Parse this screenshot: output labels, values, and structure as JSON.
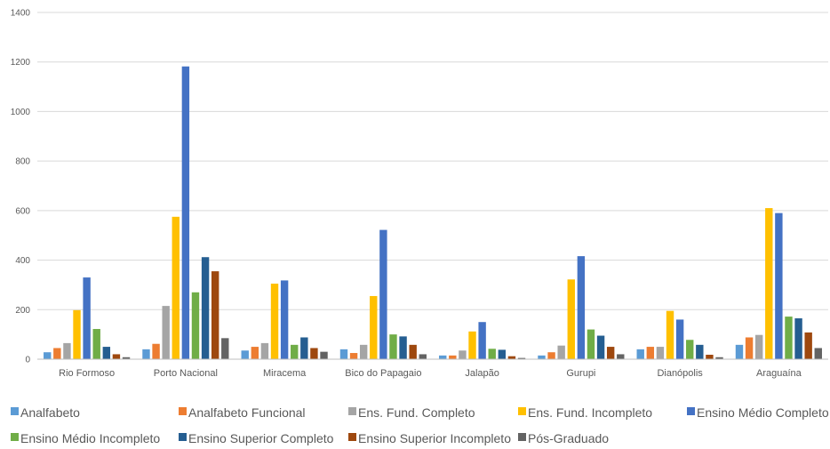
{
  "chart_data": {
    "type": "bar",
    "title": "",
    "xlabel": "",
    "ylabel": "",
    "ylim": [
      0,
      1400
    ],
    "yticks": [
      0,
      200,
      400,
      600,
      800,
      1000,
      1200,
      1400
    ],
    "grid": true,
    "legend_position": "bottom",
    "categories": [
      "Rio Formoso",
      "Porto Nacional",
      "Miracema",
      "Bico do Papagaio",
      "Jalapão",
      "Gurupi",
      "Dianópolis",
      "Araguaína"
    ],
    "series": [
      {
        "name": "Analfabeto",
        "color": "#5B9BD5",
        "values": [
          28,
          40,
          35,
          40,
          15,
          15,
          40,
          58
        ]
      },
      {
        "name": "Analfabeto Funcional",
        "color": "#ED7D31",
        "values": [
          45,
          62,
          50,
          25,
          15,
          28,
          50,
          88
        ]
      },
      {
        "name": "Ens. Fund. Completo",
        "color": "#A5A5A5",
        "values": [
          65,
          215,
          65,
          58,
          35,
          55,
          50,
          98
        ]
      },
      {
        "name": "Ens. Fund. Incompleto",
        "color": "#FFC000",
        "values": [
          198,
          575,
          305,
          255,
          112,
          322,
          195,
          610
        ]
      },
      {
        "name": "Ensino Médio Completo",
        "color": "#4472C4",
        "values": [
          330,
          1182,
          318,
          522,
          150,
          416,
          160,
          590
        ]
      },
      {
        "name": "Ensino Médio Incompleto",
        "color": "#70AD47",
        "values": [
          122,
          270,
          58,
          100,
          42,
          120,
          78,
          172
        ]
      },
      {
        "name": "Ensino Superior Completo",
        "color": "#255E91",
        "values": [
          50,
          412,
          88,
          92,
          38,
          95,
          58,
          165
        ]
      },
      {
        "name": "Ensino Superior Incompleto",
        "color": "#9E480E",
        "values": [
          20,
          355,
          45,
          58,
          12,
          50,
          18,
          108
        ]
      },
      {
        "name": "Pós-Graduado",
        "color": "#636363",
        "values": [
          8,
          85,
          30,
          20,
          5,
          20,
          8,
          45
        ]
      }
    ]
  }
}
